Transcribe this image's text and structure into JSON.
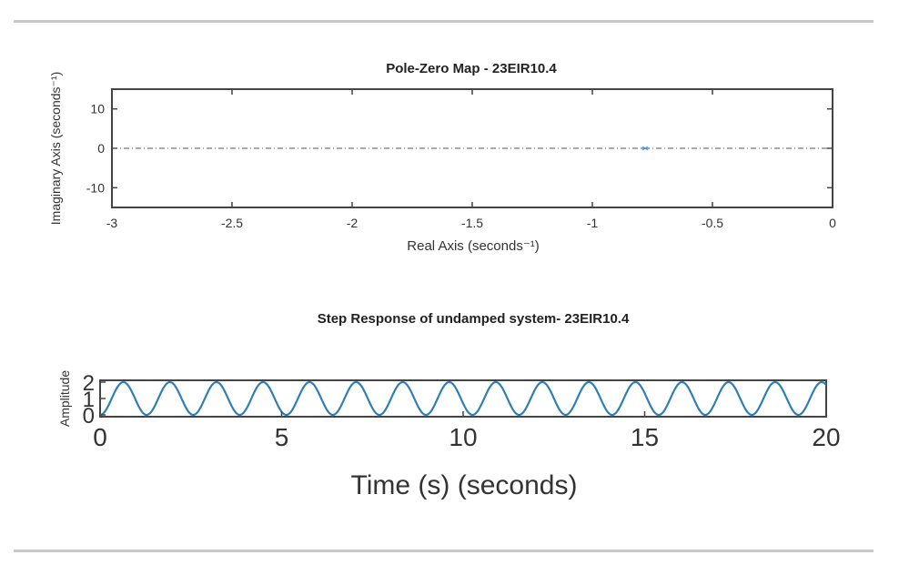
{
  "chart_data": [
    {
      "type": "scatter",
      "title": "Pole-Zero Map - 23EIR10.4",
      "xlabel": "Real Axis (seconds⁻¹)",
      "ylabel": "Imaginary Axis (seconds⁻¹)",
      "xlim": [
        -3,
        0
      ],
      "ylim": [
        -15,
        15
      ],
      "xticks": [
        -3,
        -2.5,
        -2,
        -1.5,
        -1,
        -0.5,
        0
      ],
      "xtick_labels": [
        "-3",
        "-2.5",
        "-2",
        "-1.5",
        "-1",
        "-0.5",
        "0"
      ],
      "yticks": [
        10,
        0,
        -10
      ],
      "ytick_labels": [
        "10",
        "0",
        "-10"
      ],
      "points": [
        {
          "x": -0.78,
          "y": 0
        }
      ],
      "reference_line_y": 0,
      "grid": false,
      "colors": {
        "marker": "#4a90d9",
        "refline": "#555555",
        "axes": "#444444"
      }
    },
    {
      "type": "line",
      "title": "Step Response of undamped system- 23EIR10.4",
      "xlabel": "Time (s) (seconds)",
      "ylabel": "Amplitude",
      "xlim": [
        0,
        20
      ],
      "ylim": [
        0,
        2
      ],
      "xticks": [
        0,
        5,
        10,
        15,
        20
      ],
      "xtick_labels": [
        "0",
        "5",
        "10",
        "15",
        "20"
      ],
      "yticks": [
        2,
        1,
        0
      ],
      "ytick_labels": [
        "2",
        "1",
        "0"
      ],
      "series": [
        {
          "x_start": 0,
          "x_end": 20,
          "function": "1 - cos(w t)",
          "omega": 4.9
        }
      ],
      "grid": false,
      "colors": {
        "line": "#2f7fb5",
        "axes": "#444444"
      }
    }
  ]
}
